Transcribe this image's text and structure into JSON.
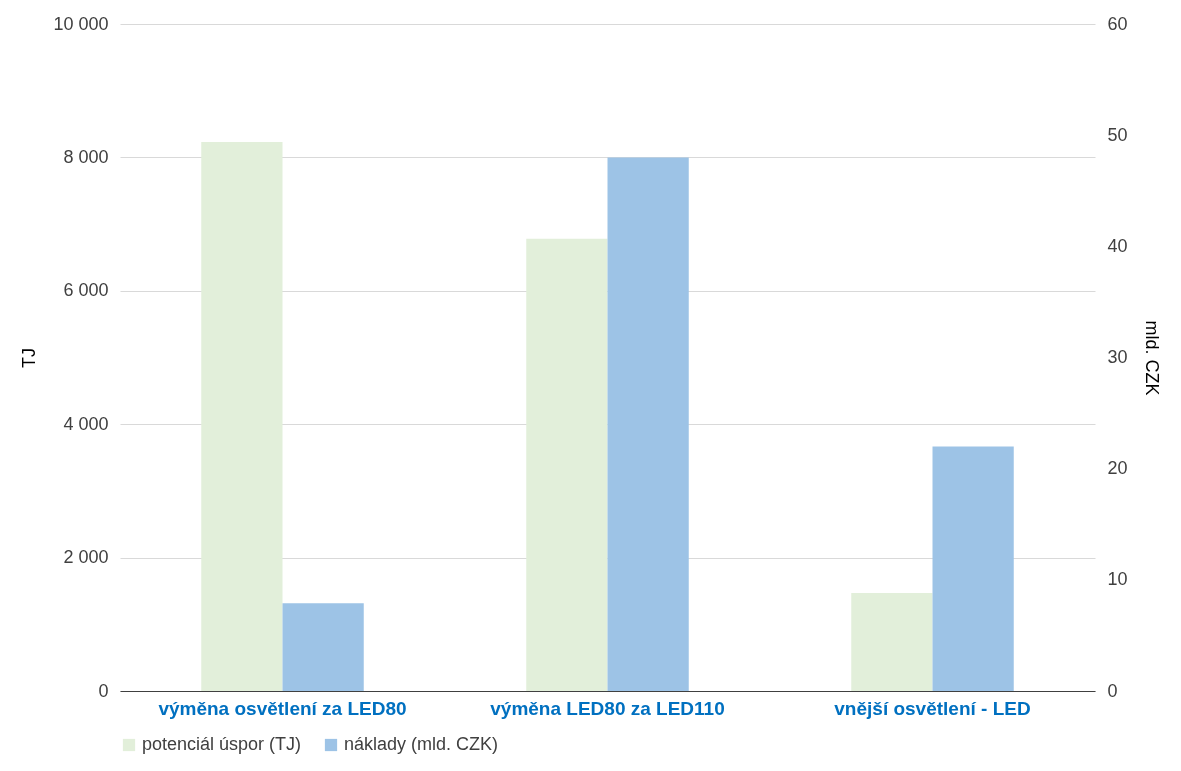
{
  "chart_data": {
    "type": "bar",
    "categories": [
      "výměna osvětlení za LED80",
      "výměna LED80 za LED110",
      "vnější osvětlení - LED"
    ],
    "series": [
      {
        "name": "potenciál úspor (TJ)",
        "color": "#e2efda",
        "values": [
          8230,
          6780,
          1470
        ]
      },
      {
        "name": "náklady (mld. CZK)",
        "color": "#9dc3e6",
        "values": [
          7.9,
          48,
          22
        ],
        "axis": "y2"
      }
    ],
    "ylabel": "TJ",
    "y2label": "mld. CZK",
    "ylim": [
      0,
      10000
    ],
    "yticks": [
      0,
      {
        "value": 2000,
        "label": "2 000"
      },
      {
        "value": 4000,
        "label": "4 000"
      },
      {
        "value": 6000,
        "label": "6 000"
      },
      {
        "value": 8000,
        "label": "8 000"
      },
      {
        "value": 10000,
        "label": "10 000"
      }
    ],
    "y2lim": [
      0,
      60
    ],
    "y2ticks": [
      0,
      10,
      20,
      30,
      40,
      50,
      60
    ],
    "grid": "y",
    "legend": "bottom"
  }
}
